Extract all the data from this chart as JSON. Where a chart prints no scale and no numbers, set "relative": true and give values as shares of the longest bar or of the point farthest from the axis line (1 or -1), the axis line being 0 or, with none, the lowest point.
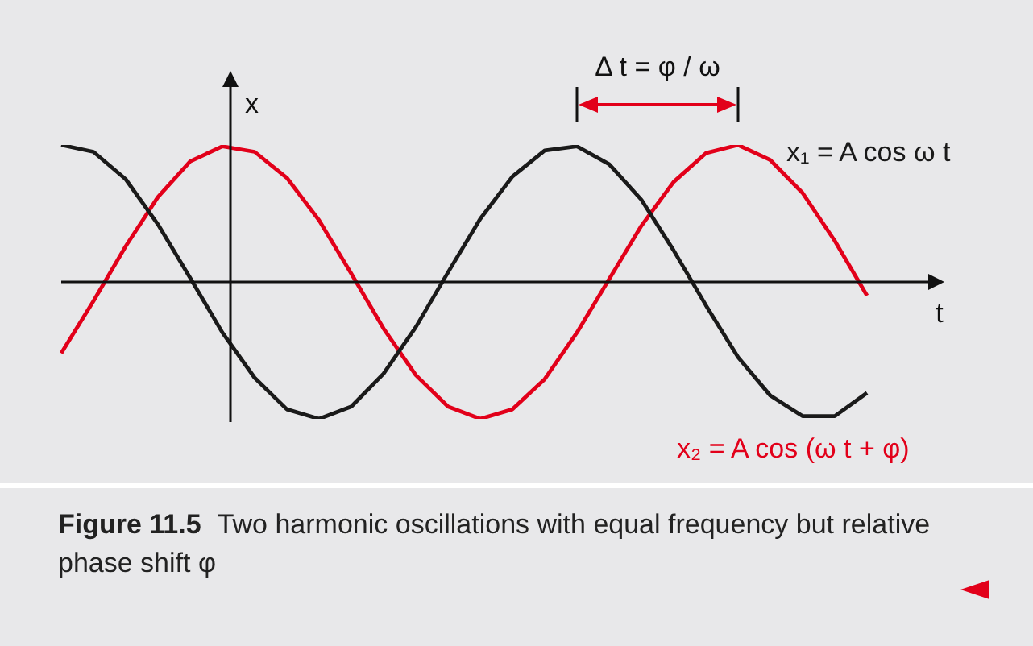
{
  "chart_data": {
    "type": "line",
    "relative": true,
    "xlabel": "t",
    "ylabel": "x",
    "legend": false,
    "grid": false,
    "marker": "none",
    "line_style": "solid",
    "categories": [
      null,
      null,
      null,
      null,
      null,
      null,
      null,
      null,
      null,
      null,
      null,
      null,
      null,
      null,
      null,
      null,
      null,
      null,
      null,
      null,
      null,
      null,
      null,
      null,
      null,
      null
    ],
    "series": [
      {
        "name": "x₁ = A cos ω t",
        "color": "#1a1a1a",
        "values": [
          1.0,
          0.95,
          0.75,
          0.42,
          0.03,
          -0.37,
          -0.7,
          -0.93,
          -1.0,
          -0.91,
          -0.67,
          -0.33,
          0.07,
          0.46,
          0.77,
          0.96,
          0.99,
          0.86,
          0.6,
          0.23,
          -0.17,
          -0.55,
          -0.83,
          -0.98,
          -0.98,
          -0.81
        ]
      },
      {
        "name": "x₂ = A cos (ω t + φ)",
        "color": "#e2001a",
        "values": [
          -0.52,
          -0.14,
          0.26,
          0.62,
          0.88,
          0.99,
          0.95,
          0.76,
          0.45,
          0.06,
          -0.34,
          -0.68,
          -0.91,
          -1.0,
          -0.93,
          -0.71,
          -0.37,
          0.02,
          0.41,
          0.73,
          0.94,
          1.0,
          0.89,
          0.65,
          0.3,
          -0.1
        ]
      }
    ],
    "annotations": [
      "Δ t = φ / ω",
      "Figure 11.5",
      "Two harmonic oscillations with equal frequency but relative phase shift φ"
    ]
  }
}
